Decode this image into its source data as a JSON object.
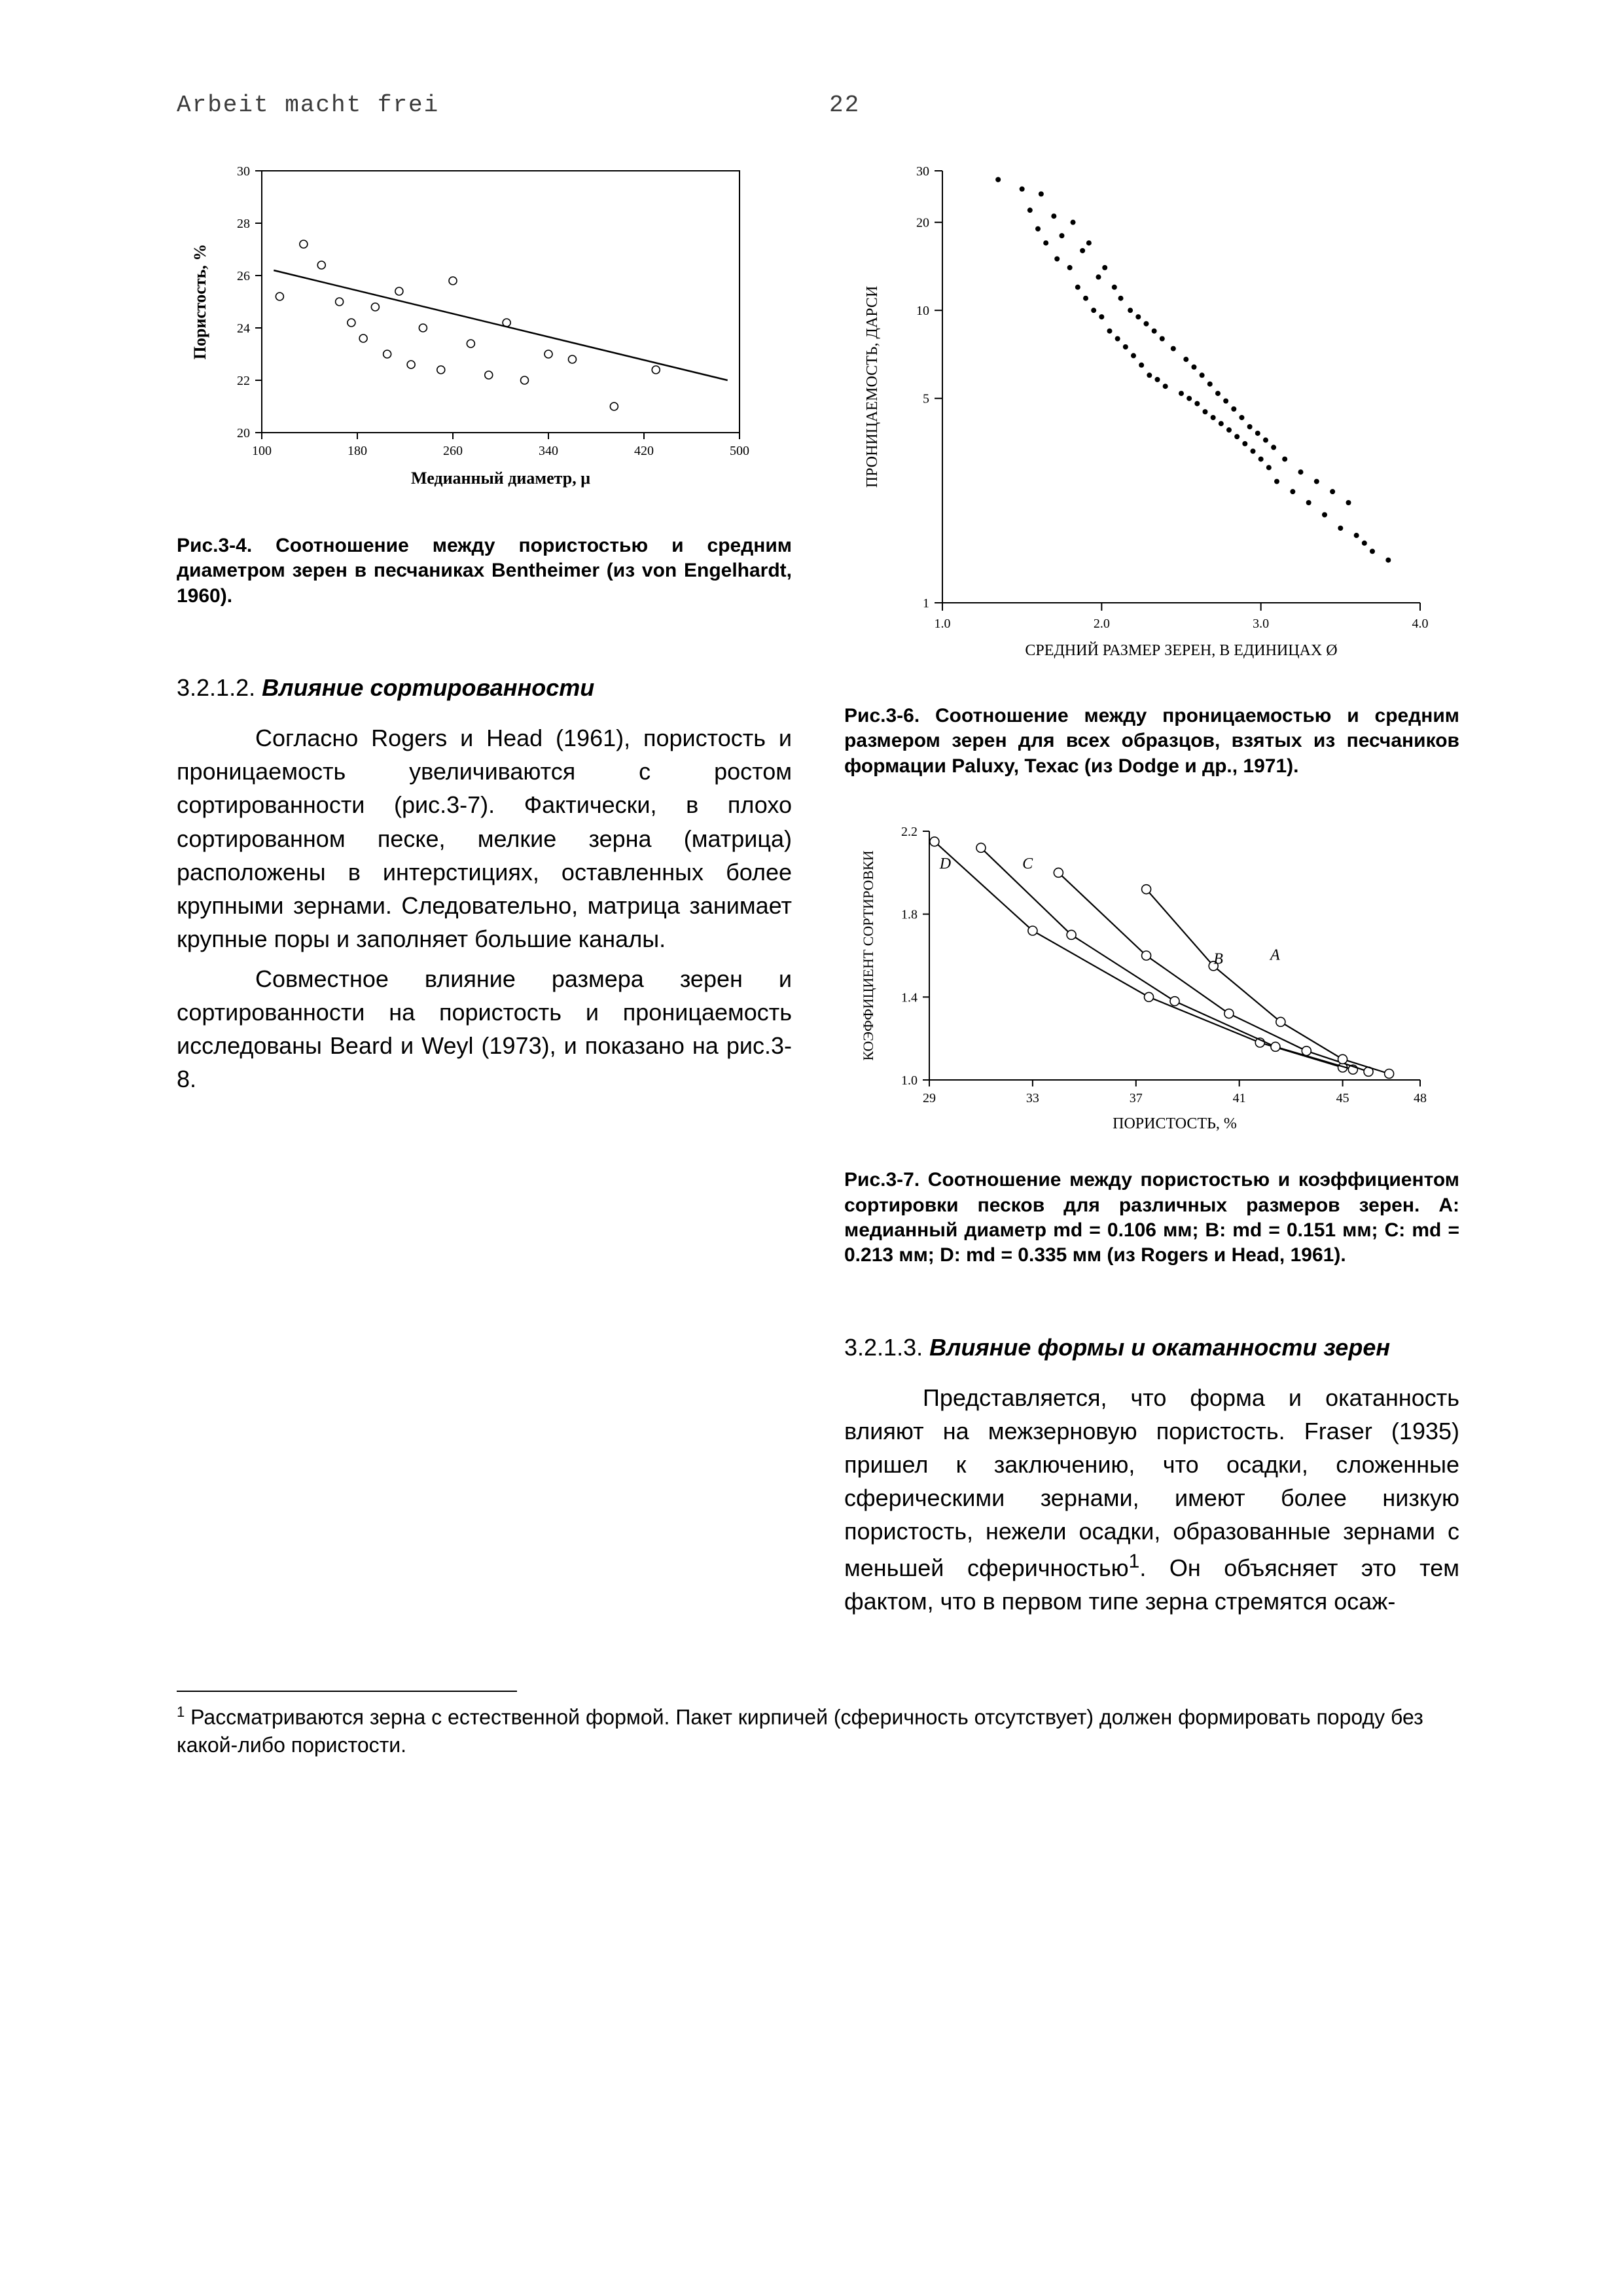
{
  "header": {
    "left": "Arbeit macht frei",
    "page": "22"
  },
  "fig34": {
    "type": "scatter+line",
    "title": "",
    "xlabel": "Медианный диаметр, μ",
    "ylabel": "Пористость, %",
    "xlim": [
      100,
      500
    ],
    "ylim": [
      20,
      30
    ],
    "xticks": [
      100,
      180,
      260,
      340,
      420,
      500
    ],
    "yticks": [
      20,
      22,
      24,
      26,
      28,
      30
    ],
    "label_fontsize": 26,
    "tick_fontsize": 20,
    "background_color": "#ffffff",
    "axis_color": "#000000",
    "marker": "circle-open",
    "marker_size": 6,
    "marker_color": "#000000",
    "line_color": "#000000",
    "line_width": 2.5,
    "fit_line": {
      "x1": 110,
      "y1": 26.2,
      "x2": 490,
      "y2": 22.0
    },
    "points": [
      [
        115,
        25.2
      ],
      [
        135,
        27.2
      ],
      [
        150,
        26.4
      ],
      [
        165,
        25.0
      ],
      [
        175,
        24.2
      ],
      [
        185,
        23.6
      ],
      [
        195,
        24.8
      ],
      [
        205,
        23.0
      ],
      [
        215,
        25.4
      ],
      [
        225,
        22.6
      ],
      [
        235,
        24.0
      ],
      [
        250,
        22.4
      ],
      [
        260,
        25.8
      ],
      [
        275,
        23.4
      ],
      [
        290,
        22.2
      ],
      [
        305,
        24.2
      ],
      [
        320,
        22.0
      ],
      [
        340,
        23.0
      ],
      [
        360,
        22.8
      ],
      [
        395,
        21.0
      ],
      [
        430,
        22.4
      ]
    ],
    "caption": "Рис.3-4. Соотношение между пористостью и средним диаметром зерен в песчаниках Bentheimer (из von Engelhardt, 1960)."
  },
  "fig36": {
    "type": "scatter",
    "xlabel": "СРЕДНИЙ РАЗМЕР ЗЕРЕН, В ЕДИНИЦАХ Ø",
    "ylabel": "ПРОНИЦАЕМОСТЬ, ДАРСИ",
    "xlim": [
      1.0,
      4.0
    ],
    "ylim_log": [
      1,
      30
    ],
    "xticks": [
      1.0,
      2.0,
      3.0,
      4.0
    ],
    "xtick_labels": [
      "1.0",
      "2.0",
      "3.0",
      "4.0"
    ],
    "yticks": [
      1,
      5,
      10,
      20,
      30
    ],
    "ytick_labels": [
      "1",
      "5",
      "10",
      "20",
      "30"
    ],
    "label_fontsize": 24,
    "tick_fontsize": 20,
    "background_color": "#ffffff",
    "axis_color": "#000000",
    "marker": "dot",
    "marker_size": 4,
    "marker_color": "#000000",
    "points": [
      [
        1.35,
        28
      ],
      [
        1.5,
        26
      ],
      [
        1.55,
        22
      ],
      [
        1.6,
        19
      ],
      [
        1.62,
        25
      ],
      [
        1.65,
        17
      ],
      [
        1.7,
        21
      ],
      [
        1.72,
        15
      ],
      [
        1.75,
        18
      ],
      [
        1.8,
        14
      ],
      [
        1.82,
        20
      ],
      [
        1.85,
        12
      ],
      [
        1.88,
        16
      ],
      [
        1.9,
        11
      ],
      [
        1.92,
        17
      ],
      [
        1.95,
        10
      ],
      [
        1.98,
        13
      ],
      [
        2.0,
        9.5
      ],
      [
        2.02,
        14
      ],
      [
        2.05,
        8.5
      ],
      [
        2.08,
        12
      ],
      [
        2.1,
        8.0
      ],
      [
        2.12,
        11
      ],
      [
        2.15,
        7.5
      ],
      [
        2.18,
        10
      ],
      [
        2.2,
        7.0
      ],
      [
        2.23,
        9.5
      ],
      [
        2.25,
        6.5
      ],
      [
        2.28,
        9.0
      ],
      [
        2.3,
        6.0
      ],
      [
        2.33,
        8.5
      ],
      [
        2.35,
        5.8
      ],
      [
        2.38,
        8.0
      ],
      [
        2.4,
        5.5
      ],
      [
        2.45,
        7.4
      ],
      [
        2.5,
        5.2
      ],
      [
        2.53,
        6.8
      ],
      [
        2.55,
        5.0
      ],
      [
        2.58,
        6.4
      ],
      [
        2.6,
        4.8
      ],
      [
        2.63,
        6.0
      ],
      [
        2.65,
        4.5
      ],
      [
        2.68,
        5.6
      ],
      [
        2.7,
        4.3
      ],
      [
        2.73,
        5.2
      ],
      [
        2.75,
        4.1
      ],
      [
        2.78,
        4.9
      ],
      [
        2.8,
        3.9
      ],
      [
        2.83,
        4.6
      ],
      [
        2.85,
        3.7
      ],
      [
        2.88,
        4.3
      ],
      [
        2.9,
        3.5
      ],
      [
        2.93,
        4.0
      ],
      [
        2.95,
        3.3
      ],
      [
        2.98,
        3.8
      ],
      [
        3.0,
        3.1
      ],
      [
        3.03,
        3.6
      ],
      [
        3.05,
        2.9
      ],
      [
        3.08,
        3.4
      ],
      [
        3.1,
        2.6
      ],
      [
        3.15,
        3.1
      ],
      [
        3.2,
        2.4
      ],
      [
        3.25,
        2.8
      ],
      [
        3.3,
        2.2
      ],
      [
        3.35,
        2.6
      ],
      [
        3.4,
        2.0
      ],
      [
        3.45,
        2.4
      ],
      [
        3.5,
        1.8
      ],
      [
        3.55,
        2.2
      ],
      [
        3.6,
        1.7
      ],
      [
        3.65,
        1.6
      ],
      [
        3.7,
        1.5
      ],
      [
        3.8,
        1.4
      ]
    ],
    "caption": "Рис.3-6. Соотношение между проницаемостью и средним размером зерен для всех образцов, взятых из песчаников формации Paluxy, Техас (из Dodge и др., 1971)."
  },
  "fig37": {
    "type": "line-multi",
    "xlabel": "ПОРИСТОСТЬ, %",
    "ylabel": "КОЭФФИЦИЕНТ СОРТИРОВКИ",
    "xlim": [
      29,
      48
    ],
    "ylim": [
      1.0,
      2.2
    ],
    "xticks": [
      29,
      33,
      37,
      41,
      45,
      48
    ],
    "yticks": [
      1.0,
      1.4,
      1.8,
      2.2
    ],
    "label_fontsize": 24,
    "tick_fontsize": 20,
    "background_color": "#ffffff",
    "axis_color": "#000000",
    "line_color": "#000000",
    "line_width": 2.2,
    "marker": "circle-open",
    "marker_size": 7,
    "series": [
      {
        "label": "D",
        "points": [
          [
            29.2,
            2.15
          ],
          [
            33.0,
            1.72
          ],
          [
            37.5,
            1.4
          ],
          [
            41.8,
            1.18
          ],
          [
            45.0,
            1.06
          ]
        ]
      },
      {
        "label": "C",
        "points": [
          [
            31.0,
            2.12
          ],
          [
            34.5,
            1.7
          ],
          [
            38.5,
            1.38
          ],
          [
            42.4,
            1.16
          ],
          [
            45.4,
            1.05
          ]
        ]
      },
      {
        "label": "B",
        "points": [
          [
            34.0,
            2.0
          ],
          [
            37.4,
            1.6
          ],
          [
            40.6,
            1.32
          ],
          [
            43.6,
            1.14
          ],
          [
            46.0,
            1.04
          ]
        ]
      },
      {
        "label": "A",
        "points": [
          [
            37.4,
            1.92
          ],
          [
            40.0,
            1.55
          ],
          [
            42.6,
            1.28
          ],
          [
            45.0,
            1.1
          ],
          [
            46.8,
            1.03
          ]
        ]
      }
    ],
    "series_label_positions": {
      "D": [
        29.4,
        2.02
      ],
      "C": [
        32.6,
        2.02
      ],
      "B": [
        40.0,
        1.56
      ],
      "A": [
        42.2,
        1.58
      ]
    },
    "caption": "Рис.3-7. Соотношение между пористостью и коэффициентом сортировки песков для различных размеров зерен. A: медианный диаметр md = 0.106 мм; B: md = 0.151 мм; C: md = 0.213 мм; D: md = 0.335 мм (из Rogers и Head, 1961)."
  },
  "section_3212": {
    "num": "3.2.1.2.",
    "title": "Влияние сортированности",
    "p1": "Согласно Rogers и Head (1961), пористость и проницаемость увеличиваются с ростом сортированности (рис.3-7). Фактически, в плохо сортированном песке, мелкие зерна (матрица) расположены в интерстициях, оставленных более крупными зернами. Следовательно, матрица занимает крупные поры и заполняет большие каналы.",
    "p2": "Совместное влияние размера зерен и сортированности на пористость и проницаемость исследованы Beard и Weyl (1973), и показано на рис.3-8."
  },
  "section_3213": {
    "num": "3.2.1.3.",
    "title": "Влияние формы и окатанности зерен",
    "p1a": "Представляется, что форма и окатанность влияют на межзерновую пористость. Fraser (1935) пришел к заключению, что осадки, сложенные сферическими зернами, имеют более низкую пористость, нежели осадки, образованные зернами с меньшей сферичностью",
    "p1b": ". Он объясняет это тем фактом, что в первом типе зерна стремятся осаж-"
  },
  "footnote": {
    "marker": "1",
    "text": "Рассматриваются зерна с естественной формой. Пакет кирпичей (сферичность отсутствует) должен формировать породу без какой-либо пористости."
  }
}
